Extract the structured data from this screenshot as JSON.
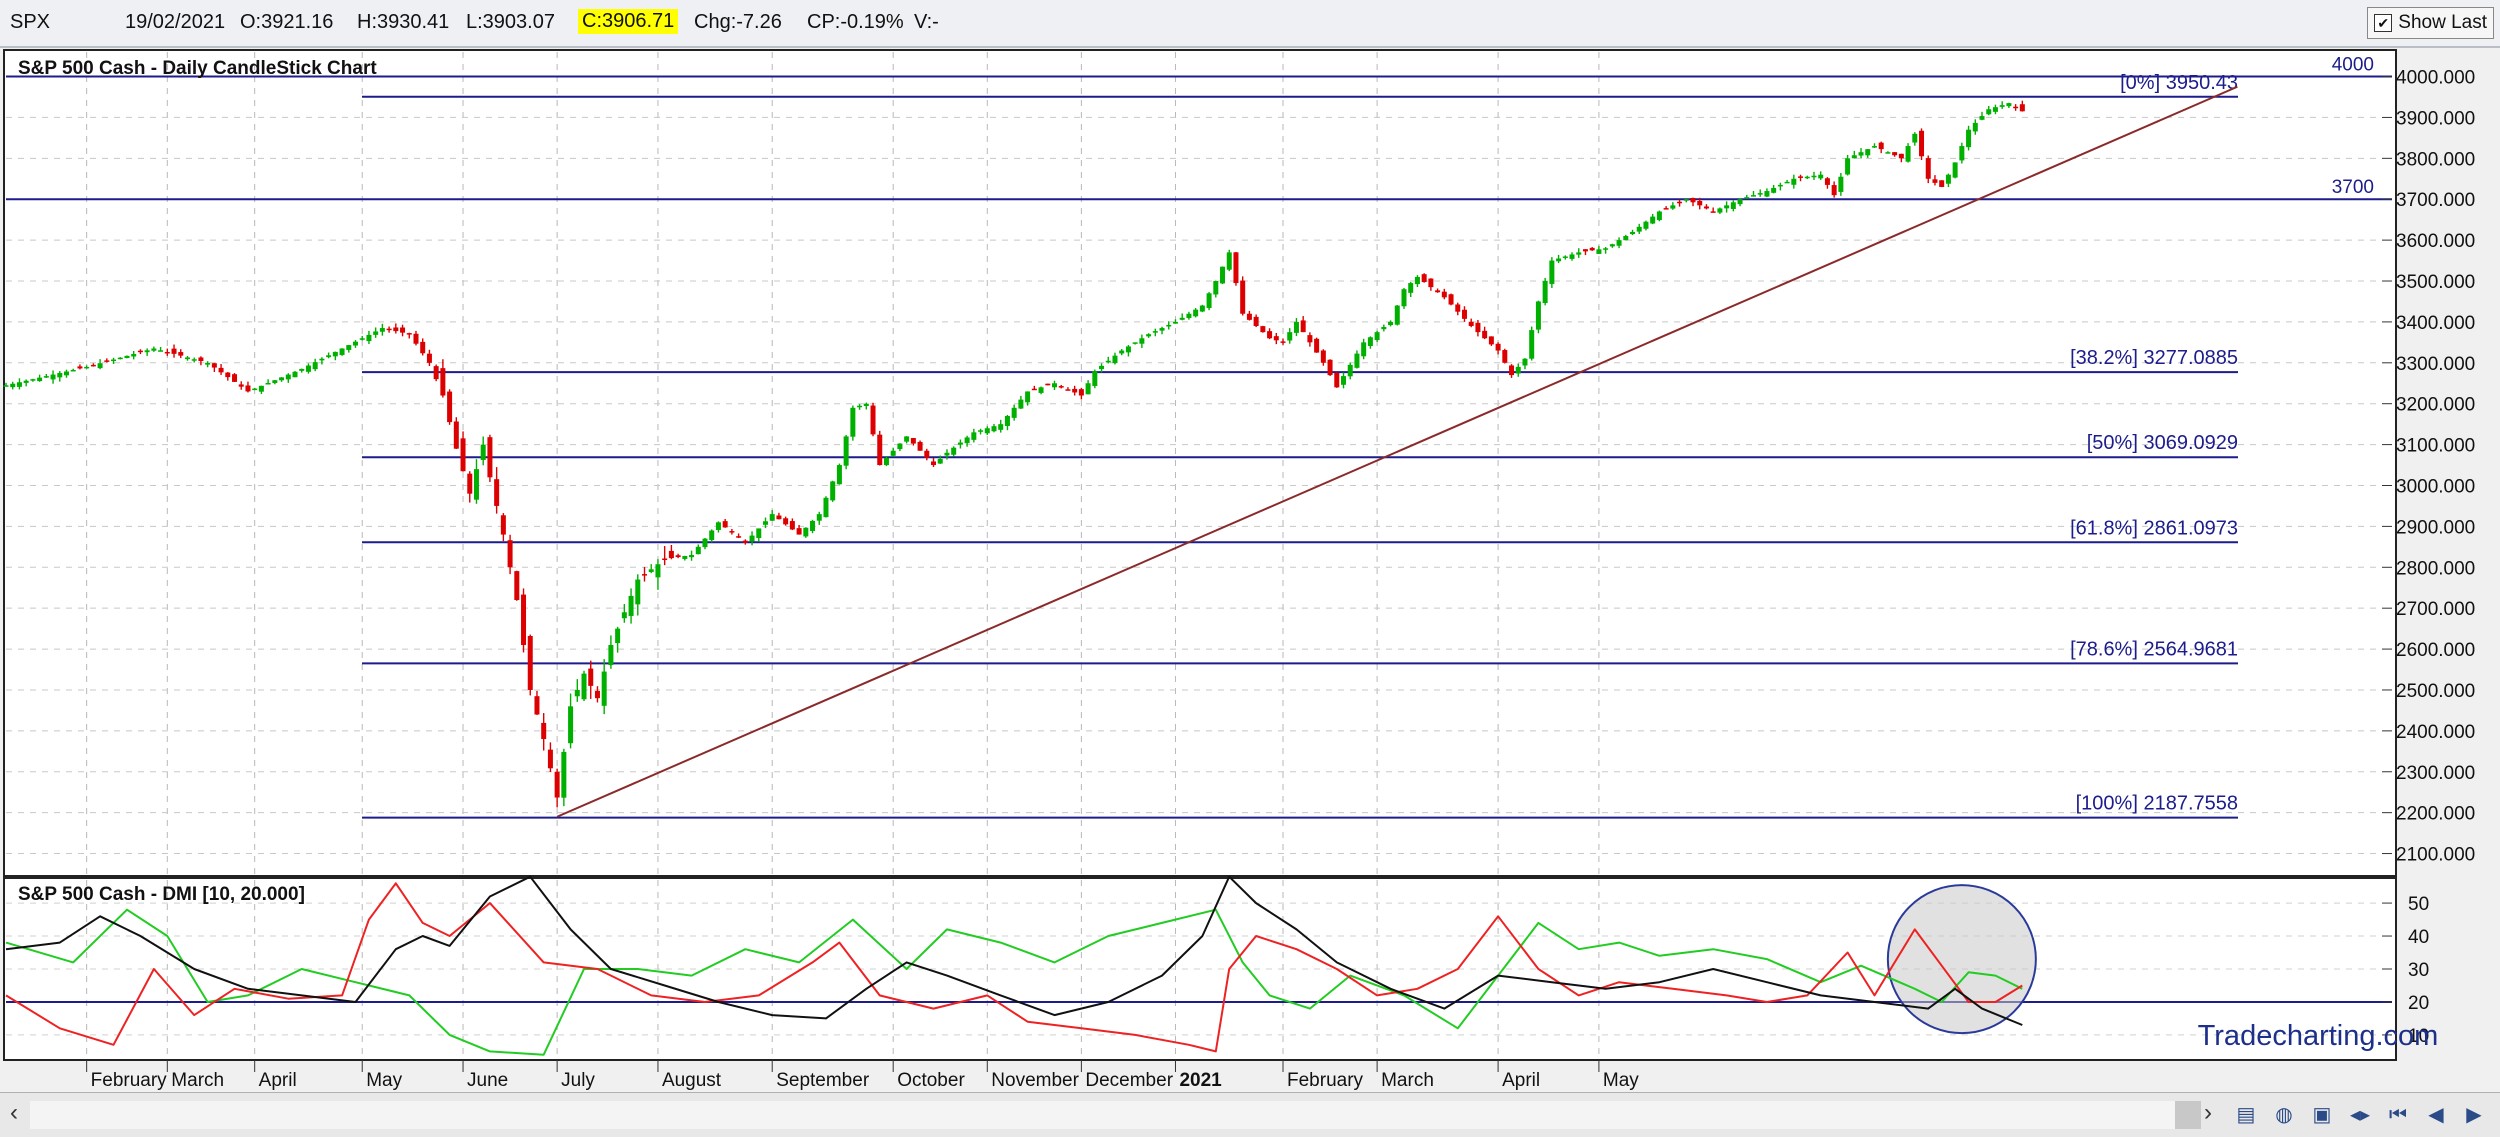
{
  "header": {
    "symbol": "SPX",
    "date": "19/02/2021",
    "open": "O:3921.16",
    "high": "H:3930.41",
    "low": "L:3903.07",
    "close": "C:3906.71",
    "change": "Chg:-7.26",
    "change_pct": "CP:-0.19%",
    "volume": "V:-",
    "show_last_label": "Show Last",
    "show_last_checked": true
  },
  "colors": {
    "up_candle": "#00b000",
    "down_candle": "#dd0000",
    "fib_line": "#1c1c8c",
    "trendline": "#8b2a2a",
    "plus_di": "#22cc22",
    "minus_di": "#ee2222",
    "adx": "#111111",
    "highlight_circle": "#2a3a9a"
  },
  "watermark": "Tradecharting.com",
  "chart_data": [
    {
      "type": "candlestick",
      "title": "S&P 500 Cash - Daily CandleStick Chart",
      "ylim": [
        2050,
        4060
      ],
      "y_ticks": [
        "2100.000",
        "2200.000",
        "2300.000",
        "2400.000",
        "2500.000",
        "2600.000",
        "2700.000",
        "2800.000",
        "2900.000",
        "3000.000",
        "3100.000",
        "3200.000",
        "3300.000",
        "3400.000",
        "3500.000",
        "3600.000",
        "3700.000",
        "3800.000",
        "3900.000",
        "4000.000"
      ],
      "x_ticks": [
        "February",
        "March",
        "April",
        "May",
        "June",
        "July",
        "August",
        "September",
        "October",
        "November",
        "December",
        "2021",
        "February",
        "March",
        "April",
        "May"
      ],
      "close_path": [
        [
          0,
          3245
        ],
        [
          12,
          3290
        ],
        [
          22,
          3335
        ],
        [
          30,
          3300
        ],
        [
          36,
          3230
        ],
        [
          44,
          3285
        ],
        [
          50,
          3335
        ],
        [
          56,
          3385
        ],
        [
          60,
          3370
        ],
        [
          63,
          3300
        ],
        [
          65,
          3220
        ],
        [
          67,
          3090
        ],
        [
          69,
          2980
        ],
        [
          71,
          3100
        ],
        [
          72,
          3020
        ],
        [
          74,
          2880
        ],
        [
          76,
          2720
        ],
        [
          78,
          2500
        ],
        [
          80,
          2380
        ],
        [
          82,
          2237
        ],
        [
          84,
          2460
        ],
        [
          86,
          2540
        ],
        [
          88,
          2480
        ],
        [
          90,
          2610
        ],
        [
          94,
          2770
        ],
        [
          98,
          2820
        ],
        [
          102,
          2830
        ],
        [
          106,
          2910
        ],
        [
          110,
          2860
        ],
        [
          114,
          2930
        ],
        [
          118,
          2880
        ],
        [
          121,
          2930
        ],
        [
          124,
          3050
        ],
        [
          126,
          3190
        ],
        [
          128,
          3200
        ],
        [
          130,
          3050
        ],
        [
          134,
          3120
        ],
        [
          138,
          3050
        ],
        [
          140,
          3080
        ],
        [
          144,
          3130
        ],
        [
          148,
          3150
        ],
        [
          152,
          3230
        ],
        [
          156,
          3250
        ],
        [
          160,
          3220
        ],
        [
          162,
          3280
        ],
        [
          166,
          3330
        ],
        [
          170,
          3370
        ],
        [
          174,
          3400
        ],
        [
          178,
          3440
        ],
        [
          180,
          3500
        ],
        [
          182,
          3570
        ],
        [
          184,
          3420
        ],
        [
          188,
          3360
        ],
        [
          190,
          3350
        ],
        [
          192,
          3400
        ],
        [
          196,
          3300
        ],
        [
          198,
          3240
        ],
        [
          202,
          3350
        ],
        [
          206,
          3400
        ],
        [
          208,
          3480
        ],
        [
          210,
          3510
        ],
        [
          214,
          3460
        ],
        [
          218,
          3390
        ],
        [
          222,
          3330
        ],
        [
          224,
          3270
        ],
        [
          226,
          3310
        ],
        [
          228,
          3450
        ],
        [
          230,
          3550
        ],
        [
          234,
          3570
        ],
        [
          238,
          3580
        ],
        [
          242,
          3620
        ],
        [
          246,
          3670
        ],
        [
          250,
          3700
        ],
        [
          254,
          3670
        ],
        [
          258,
          3700
        ],
        [
          262,
          3720
        ],
        [
          266,
          3750
        ],
        [
          270,
          3760
        ],
        [
          272,
          3710
        ],
        [
          274,
          3800
        ],
        [
          278,
          3830
        ],
        [
          282,
          3800
        ],
        [
          284,
          3860
        ],
        [
          286,
          3750
        ],
        [
          288,
          3730
        ],
        [
          290,
          3790
        ],
        [
          292,
          3870
        ],
        [
          295,
          3920
        ],
        [
          298,
          3935
        ],
        [
          300,
          3915
        ]
      ],
      "x_max": 355,
      "fib_levels": [
        {
          "label": "[0%] 3950.43",
          "value": 3950.43
        },
        {
          "label": "[38.2%] 3277.0885",
          "value": 3277.0885
        },
        {
          "label": "[50%] 3069.0929",
          "value": 3069.0929
        },
        {
          "label": "[61.8%] 2861.0973",
          "value": 2861.0973
        },
        {
          "label": "[78.6%] 2564.9681",
          "value": 2564.9681
        },
        {
          "label": "[100%] 2187.7558",
          "value": 2187.7558
        }
      ],
      "horizontal_lines": [
        {
          "label": "4000",
          "value": 4000
        },
        {
          "label": "3700",
          "value": 3700
        }
      ],
      "trendline": {
        "start": [
          82,
          2190
        ],
        "end": [
          332,
          3975
        ]
      }
    },
    {
      "type": "line",
      "title": "S&P 500 Cash - DMI [10, 20.000]",
      "ylim": [
        3,
        57
      ],
      "y_ticks": [
        "10",
        "20",
        "30",
        "40",
        "50"
      ],
      "reference_level": 20,
      "series": [
        {
          "key": "plus",
          "values": [
            [
              0,
              38
            ],
            [
              10,
              32
            ],
            [
              18,
              48
            ],
            [
              24,
              40
            ],
            [
              30,
              20
            ],
            [
              36,
              22
            ],
            [
              44,
              30
            ],
            [
              52,
              26
            ],
            [
              60,
              22
            ],
            [
              66,
              10
            ],
            [
              72,
              5
            ],
            [
              80,
              4
            ],
            [
              86,
              30
            ],
            [
              94,
              30
            ],
            [
              102,
              28
            ],
            [
              110,
              36
            ],
            [
              118,
              32
            ],
            [
              126,
              45
            ],
            [
              134,
              30
            ],
            [
              140,
              42
            ],
            [
              148,
              38
            ],
            [
              156,
              32
            ],
            [
              164,
              40
            ],
            [
              172,
              44
            ],
            [
              180,
              48
            ],
            [
              184,
              32
            ],
            [
              188,
              22
            ],
            [
              194,
              18
            ],
            [
              200,
              28
            ],
            [
              208,
              22
            ],
            [
              216,
              12
            ],
            [
              222,
              28
            ],
            [
              228,
              44
            ],
            [
              234,
              36
            ],
            [
              240,
              38
            ],
            [
              246,
              34
            ],
            [
              254,
              36
            ],
            [
              262,
              33
            ],
            [
              270,
              26
            ],
            [
              276,
              31
            ],
            [
              284,
              24
            ],
            [
              288,
              20
            ],
            [
              292,
              29
            ],
            [
              296,
              28
            ],
            [
              300,
              24
            ]
          ]
        },
        {
          "key": "minus",
          "values": [
            [
              0,
              22
            ],
            [
              8,
              12
            ],
            [
              16,
              7
            ],
            [
              22,
              30
            ],
            [
              28,
              16
            ],
            [
              34,
              24
            ],
            [
              42,
              21
            ],
            [
              50,
              22
            ],
            [
              54,
              45
            ],
            [
              58,
              56
            ],
            [
              62,
              44
            ],
            [
              66,
              40
            ],
            [
              72,
              50
            ],
            [
              80,
              32
            ],
            [
              88,
              30
            ],
            [
              96,
              22
            ],
            [
              104,
              20
            ],
            [
              112,
              22
            ],
            [
              120,
              32
            ],
            [
              124,
              38
            ],
            [
              130,
              22
            ],
            [
              138,
              18
            ],
            [
              146,
              22
            ],
            [
              152,
              14
            ],
            [
              160,
              12
            ],
            [
              168,
              10
            ],
            [
              176,
              7
            ],
            [
              180,
              5
            ],
            [
              182,
              30
            ],
            [
              186,
              40
            ],
            [
              192,
              36
            ],
            [
              198,
              30
            ],
            [
              204,
              22
            ],
            [
              210,
              24
            ],
            [
              216,
              30
            ],
            [
              222,
              46
            ],
            [
              228,
              30
            ],
            [
              234,
              22
            ],
            [
              240,
              26
            ],
            [
              248,
              24
            ],
            [
              256,
              22
            ],
            [
              262,
              20
            ],
            [
              268,
              22
            ],
            [
              274,
              35
            ],
            [
              278,
              22
            ],
            [
              284,
              42
            ],
            [
              288,
              31
            ],
            [
              292,
              20
            ],
            [
              296,
              20
            ],
            [
              300,
              25
            ]
          ]
        },
        {
          "key": "adx",
          "values": [
            [
              0,
              36
            ],
            [
              8,
              38
            ],
            [
              14,
              46
            ],
            [
              20,
              40
            ],
            [
              28,
              30
            ],
            [
              36,
              24
            ],
            [
              44,
              22
            ],
            [
              52,
              20
            ],
            [
              58,
              36
            ],
            [
              62,
              40
            ],
            [
              66,
              37
            ],
            [
              72,
              52
            ],
            [
              78,
              58
            ],
            [
              84,
              42
            ],
            [
              90,
              30
            ],
            [
              98,
              25
            ],
            [
              106,
              20
            ],
            [
              114,
              16
            ],
            [
              122,
              15
            ],
            [
              128,
              24
            ],
            [
              134,
              32
            ],
            [
              140,
              28
            ],
            [
              148,
              22
            ],
            [
              156,
              16
            ],
            [
              164,
              20
            ],
            [
              172,
              28
            ],
            [
              178,
              40
            ],
            [
              182,
              58
            ],
            [
              186,
              50
            ],
            [
              192,
              42
            ],
            [
              198,
              32
            ],
            [
              206,
              24
            ],
            [
              214,
              18
            ],
            [
              222,
              28
            ],
            [
              230,
              26
            ],
            [
              238,
              24
            ],
            [
              246,
              26
            ],
            [
              254,
              30
            ],
            [
              262,
              26
            ],
            [
              270,
              22
            ],
            [
              278,
              20
            ],
            [
              286,
              18
            ],
            [
              290,
              24
            ],
            [
              294,
              18
            ],
            [
              300,
              13
            ]
          ]
        }
      ],
      "highlight_circle": {
        "x": 291,
        "y": 33
      }
    }
  ]
}
